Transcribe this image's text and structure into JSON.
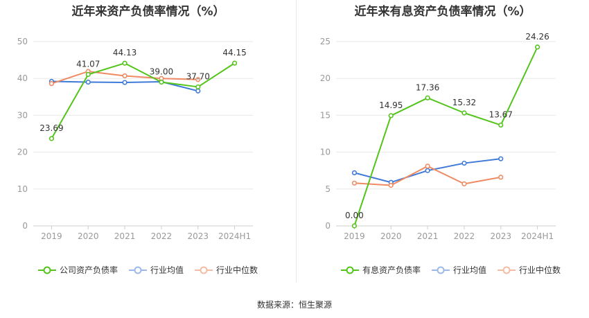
{
  "colors": {
    "green": "#52c41a",
    "blue": "#3f7ad9",
    "orange": "#ef8a62",
    "axis": "#999999",
    "grid": "#e8e8e8"
  },
  "source": "数据来源：恒生聚源",
  "chart_data": [
    {
      "type": "line",
      "title": "近年来资产负债率情况（%）",
      "categories": [
        "2019",
        "2020",
        "2021",
        "2022",
        "2023",
        "2024H1"
      ],
      "ylim": [
        0,
        50
      ],
      "yticks": [
        "0",
        "10",
        "20",
        "30",
        "40",
        "50"
      ],
      "grid": true,
      "legend_position": "bottom",
      "series": [
        {
          "name": "公司资产负债率",
          "color": "#52c41a",
          "values": [
            23.69,
            41.07,
            44.13,
            39.0,
            37.7,
            44.15
          ],
          "labels": [
            "23.69",
            "41.07",
            "44.13",
            "39.00",
            "37.70",
            "44.15"
          ]
        },
        {
          "name": "行业均值",
          "color": "#3f7ad9",
          "values": [
            39.2,
            39.0,
            38.9,
            39.1,
            36.6,
            null
          ],
          "labels": []
        },
        {
          "name": "行业中位数",
          "color": "#ef8a62",
          "values": [
            38.6,
            41.9,
            40.7,
            40.0,
            39.7,
            null
          ],
          "labels": []
        }
      ]
    },
    {
      "type": "line",
      "title": "近年来有息资产负债率情况（%）",
      "categories": [
        "2019",
        "2020",
        "2021",
        "2022",
        "2023",
        "2024H1"
      ],
      "ylim": [
        0,
        25
      ],
      "yticks": [
        "0",
        "5",
        "10",
        "15",
        "20",
        "25"
      ],
      "grid": true,
      "legend_position": "bottom",
      "series": [
        {
          "name": "有息资产负债率",
          "color": "#52c41a",
          "values": [
            0.0,
            14.95,
            17.36,
            15.32,
            13.67,
            24.26
          ],
          "labels": [
            "0.00",
            "14.95",
            "17.36",
            "15.32",
            "13.67",
            "24.26"
          ]
        },
        {
          "name": "行业均值",
          "color": "#3f7ad9",
          "values": [
            7.2,
            5.9,
            7.5,
            8.5,
            9.1,
            null
          ],
          "labels": []
        },
        {
          "name": "行业中位数",
          "color": "#ef8a62",
          "values": [
            5.8,
            5.5,
            8.1,
            5.7,
            6.6,
            null
          ],
          "labels": []
        }
      ]
    }
  ]
}
